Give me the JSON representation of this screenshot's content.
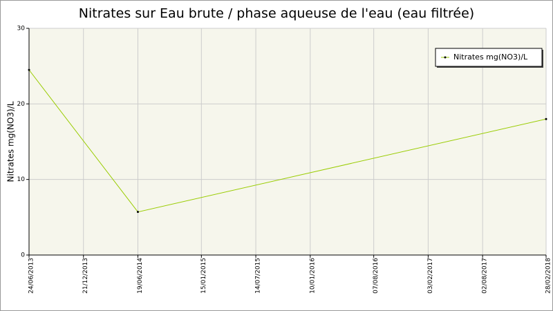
{
  "chart_data": {
    "type": "line",
    "title": "Nitrates sur Eau brute / phase aqueuse de l'eau (eau filtrée)",
    "y_label": "Nitrates mg(NO3)/L",
    "x": [
      "24/06/2013",
      "19/06/2014",
      "28/02/2018"
    ],
    "series": [
      {
        "name": "Nitrates mg(NO3)/L",
        "color": "#99cc00",
        "values": [
          24.5,
          5.7,
          18.0
        ]
      }
    ],
    "xlim": [
      "24/06/2013",
      "28/02/2018"
    ],
    "xticks": [
      "24/06/2013",
      "21/12/2013",
      "19/06/2014",
      "15/01/2015",
      "14/07/2015",
      "10/01/2016",
      "07/08/2016",
      "03/02/2017",
      "02/08/2017",
      "28/02/2018"
    ],
    "ylim": [
      0,
      30
    ],
    "yticks": [
      0,
      10,
      20,
      30
    ],
    "grid": true,
    "legend": "top-right"
  }
}
